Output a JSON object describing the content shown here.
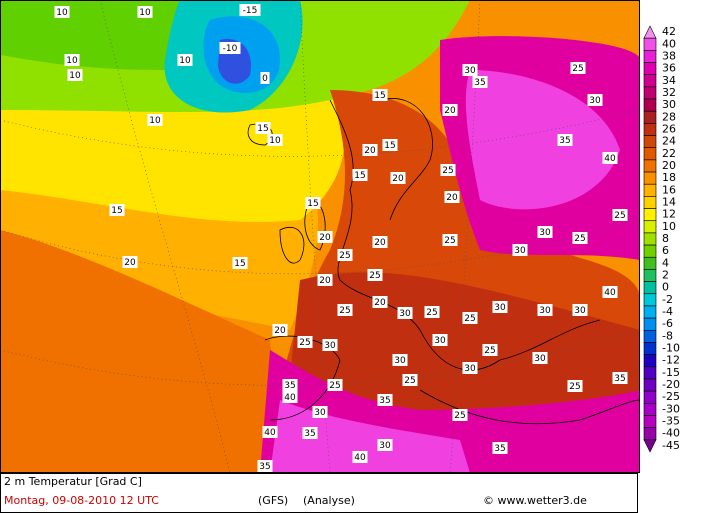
{
  "map": {
    "labels": [
      10,
      10,
      -15,
      -10,
      0,
      10,
      10,
      10,
      10,
      15,
      10,
      15,
      20,
      15,
      15,
      20,
      25,
      20,
      30,
      35,
      25,
      30,
      35,
      40,
      15,
      20,
      15,
      15,
      20,
      25,
      20,
      20,
      25,
      30,
      30,
      25,
      25,
      25,
      20,
      25,
      20,
      30,
      25,
      25,
      30,
      30,
      30,
      40,
      20,
      25,
      30,
      30,
      30,
      25,
      30,
      35,
      35,
      25,
      25,
      30,
      25,
      40,
      30,
      35,
      25,
      40,
      35,
      30,
      35,
      40,
      35
    ]
  },
  "colorbar": {
    "levels": [
      42,
      40,
      38,
      36,
      34,
      32,
      30,
      28,
      26,
      24,
      22,
      20,
      18,
      16,
      14,
      12,
      10,
      8,
      6,
      4,
      2,
      0,
      -2,
      -4,
      -6,
      -8,
      -10,
      -12,
      -15,
      -20,
      -25,
      -30,
      -35,
      -40,
      -45
    ],
    "colors": [
      "#f090f0",
      "#f050e8",
      "#e820d8",
      "#e000b0",
      "#d00090",
      "#c00070",
      "#b00050",
      "#a82020",
      "#c03010",
      "#d04808",
      "#e05800",
      "#f07000",
      "#f89000",
      "#ffb000",
      "#ffd000",
      "#fff000",
      "#d8f000",
      "#a0e000",
      "#70d000",
      "#40c020",
      "#20c060",
      "#00c0a0",
      "#00c8d8",
      "#00b0f0",
      "#0090f0",
      "#0060e0",
      "#0030d0",
      "#2000c0",
      "#5000c0",
      "#7000c0",
      "#9000c8",
      "#a800c8",
      "#b800c0",
      "#9800a8",
      "#780090"
    ]
  },
  "footer": {
    "title": "2 m Temperatur [Grad C]",
    "date": "Montag, 09-08-2010   12 UTC",
    "model": "(GFS)",
    "run": "(Analyse)",
    "credit": "© www.wetter3.de"
  }
}
